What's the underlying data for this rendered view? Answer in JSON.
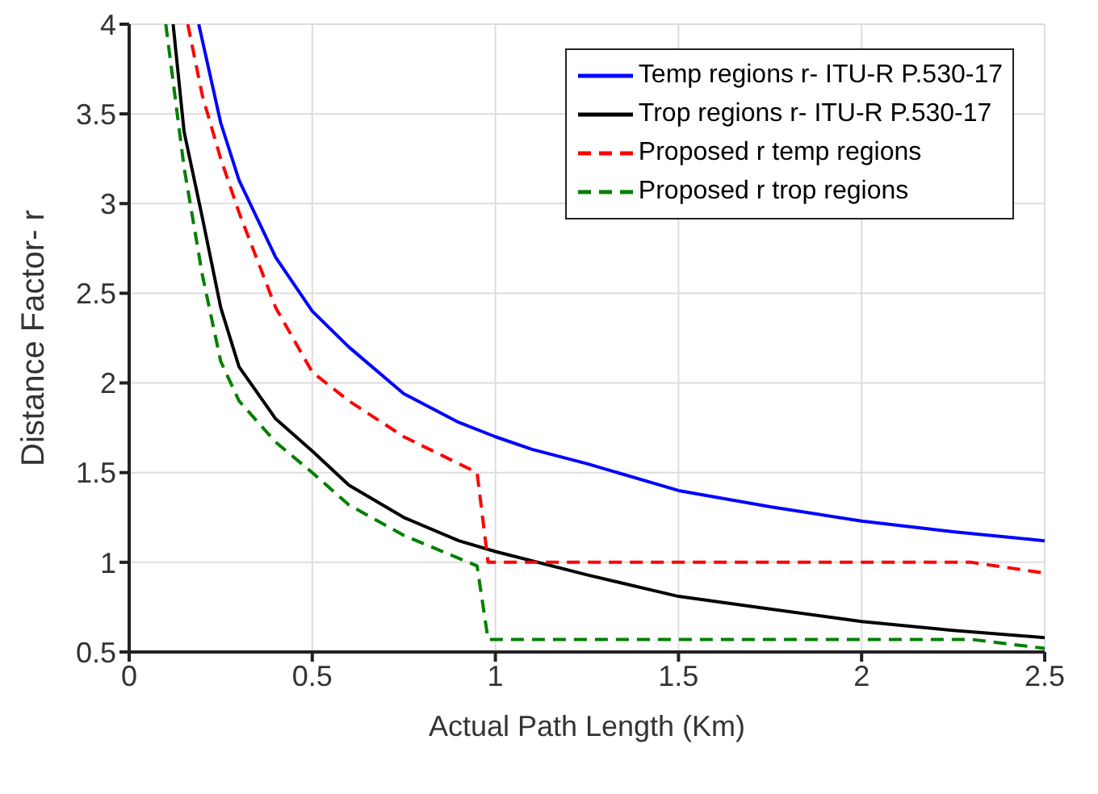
{
  "chart_data": {
    "type": "line",
    "xlabel": "Actual Path Length (Km)",
    "ylabel": "Distance  Factor- r",
    "xlim": [
      0,
      2.5
    ],
    "xticks": [
      0,
      0.5,
      1,
      1.5,
      2,
      2.5
    ],
    "ylim": [
      0.5,
      4
    ],
    "yticks": [
      0.5,
      1,
      1.5,
      2,
      2.5,
      3,
      3.5,
      4
    ],
    "grid": true,
    "legend": "top right",
    "marker": "none",
    "series": [
      {
        "name": "Temp regions r- ITU-R P.530-17",
        "color": "#0000ff",
        "line_style": "solid",
        "x": [
          0.19,
          0.25,
          0.3,
          0.4,
          0.5,
          0.6,
          0.75,
          0.9,
          1,
          1.1,
          1.25,
          1.5,
          1.75,
          2,
          2.25,
          2.5
        ],
        "values": [
          4,
          3.45,
          3.13,
          2.7,
          2.4,
          2.2,
          1.94,
          1.78,
          1.7,
          1.63,
          1.55,
          1.4,
          1.31,
          1.23,
          1.17,
          1.12
        ]
      },
      {
        "name": "Trop regions r- ITU-R P.530-17",
        "color": "#000000",
        "line_style": "solid",
        "x": [
          0.12,
          0.15,
          0.2,
          0.25,
          0.3,
          0.4,
          0.5,
          0.6,
          0.75,
          0.9,
          1,
          1.25,
          1.5,
          1.75,
          2,
          2.25,
          2.5
        ],
        "values": [
          4,
          3.4,
          2.92,
          2.42,
          2.09,
          1.8,
          1.62,
          1.43,
          1.25,
          1.12,
          1.06,
          0.93,
          0.81,
          0.74,
          0.67,
          0.62,
          0.58
        ]
      },
      {
        "name": "Proposed r temp regions",
        "color": "#ff0000",
        "line_style": "dashed",
        "x": [
          0.16,
          0.2,
          0.25,
          0.3,
          0.4,
          0.5,
          0.6,
          0.75,
          0.95,
          0.98,
          1,
          1.5,
          2,
          2.3,
          2.5
        ],
        "values": [
          4,
          3.6,
          3.25,
          2.95,
          2.42,
          2.06,
          1.9,
          1.7,
          1.5,
          1,
          1,
          1,
          1,
          1,
          0.94
        ]
      },
      {
        "name": "Proposed r trop regions",
        "color": "#007f00",
        "line_style": "dashed",
        "x": [
          0.1,
          0.15,
          0.2,
          0.25,
          0.3,
          0.4,
          0.5,
          0.6,
          0.75,
          0.95,
          0.98,
          1,
          1.5,
          2,
          2.3,
          2.5
        ],
        "values": [
          4,
          3.2,
          2.6,
          2.12,
          1.9,
          1.67,
          1.5,
          1.32,
          1.15,
          0.98,
          0.57,
          0.57,
          0.57,
          0.57,
          0.57,
          0.52
        ]
      }
    ]
  }
}
